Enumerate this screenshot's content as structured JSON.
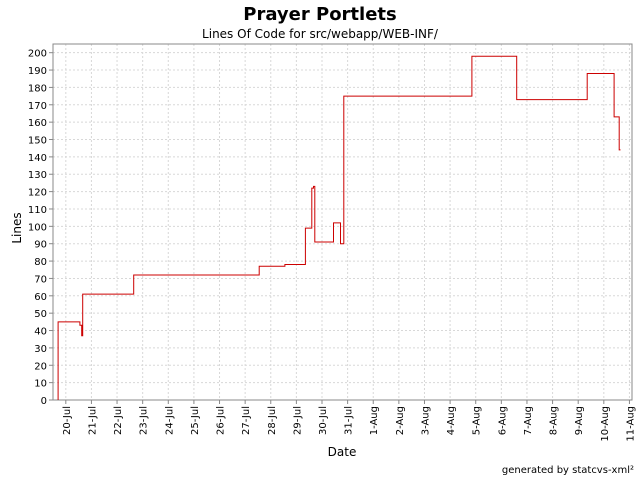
{
  "chart_data": {
    "type": "line",
    "title": "Prayer Portlets",
    "subtitle": "Lines Of Code for src/webapp/WEB-INF/",
    "xlabel": "Date",
    "ylabel": "Lines",
    "ylim": [
      0,
      205
    ],
    "xlim": [
      -0.5,
      22.1
    ],
    "y_ticks": [
      0,
      10,
      20,
      30,
      40,
      50,
      60,
      70,
      80,
      90,
      100,
      110,
      120,
      130,
      140,
      150,
      160,
      170,
      180,
      190,
      200
    ],
    "x_ticks": [
      {
        "x": 0,
        "label": "20-Jul"
      },
      {
        "x": 1,
        "label": "21-Jul"
      },
      {
        "x": 2,
        "label": "22-Jul"
      },
      {
        "x": 3,
        "label": "23-Jul"
      },
      {
        "x": 4,
        "label": "24-Jul"
      },
      {
        "x": 5,
        "label": "25-Jul"
      },
      {
        "x": 6,
        "label": "26-Jul"
      },
      {
        "x": 7,
        "label": "27-Jul"
      },
      {
        "x": 8,
        "label": "28-Jul"
      },
      {
        "x": 9,
        "label": "29-Jul"
      },
      {
        "x": 10,
        "label": "30-Jul"
      },
      {
        "x": 11,
        "label": "31-Jul"
      },
      {
        "x": 12,
        "label": "1-Aug"
      },
      {
        "x": 13,
        "label": "2-Aug"
      },
      {
        "x": 14,
        "label": "3-Aug"
      },
      {
        "x": 15,
        "label": "4-Aug"
      },
      {
        "x": 16,
        "label": "5-Aug"
      },
      {
        "x": 17,
        "label": "6-Aug"
      },
      {
        "x": 18,
        "label": "7-Aug"
      },
      {
        "x": 19,
        "label": "8-Aug"
      },
      {
        "x": 20,
        "label": "9-Aug"
      },
      {
        "x": 21,
        "label": "10-Aug"
      },
      {
        "x": 22,
        "label": "11-Aug"
      }
    ],
    "grid": true,
    "step": true,
    "series": [
      {
        "color": "#cc0000",
        "points": [
          [
            -0.3,
            0
          ],
          [
            -0.3,
            45
          ],
          [
            0.55,
            45
          ],
          [
            0.55,
            43
          ],
          [
            0.62,
            43
          ],
          [
            0.62,
            37
          ],
          [
            0.66,
            37
          ],
          [
            0.66,
            61
          ],
          [
            2.65,
            61
          ],
          [
            2.65,
            72
          ],
          [
            7.55,
            72
          ],
          [
            7.55,
            77
          ],
          [
            8.55,
            77
          ],
          [
            8.55,
            78
          ],
          [
            9.35,
            78
          ],
          [
            9.35,
            99
          ],
          [
            9.6,
            99
          ],
          [
            9.6,
            122
          ],
          [
            9.67,
            122
          ],
          [
            9.67,
            123
          ],
          [
            9.72,
            123
          ],
          [
            9.72,
            91
          ],
          [
            10.45,
            91
          ],
          [
            10.45,
            102
          ],
          [
            10.72,
            102
          ],
          [
            10.72,
            90
          ],
          [
            10.85,
            90
          ],
          [
            10.85,
            175
          ],
          [
            15.85,
            175
          ],
          [
            15.85,
            198
          ],
          [
            17.6,
            198
          ],
          [
            17.6,
            173
          ],
          [
            20.35,
            173
          ],
          [
            20.35,
            188
          ],
          [
            21.4,
            188
          ],
          [
            21.4,
            163
          ],
          [
            21.6,
            163
          ],
          [
            21.6,
            144
          ],
          [
            21.65,
            144
          ]
        ]
      }
    ]
  },
  "footer": "generated by statcvs-xml²"
}
